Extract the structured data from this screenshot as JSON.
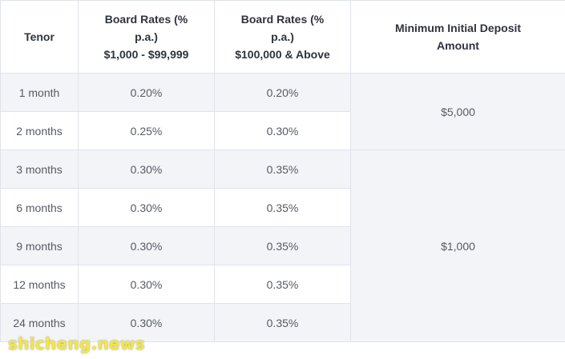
{
  "header": {
    "tenor": "Tenor",
    "board_low": [
      "Board Rates (%",
      "p.a.)",
      "$1,000 - $99,999"
    ],
    "board_high": [
      "Board Rates (%",
      "p.a.)",
      "$100,000 & Above"
    ],
    "min_deposit": [
      "Minimum Initial Deposit",
      "Amount"
    ]
  },
  "rows": [
    {
      "tenor": "1 month",
      "rate_low": "0.20%",
      "rate_high": "0.20%"
    },
    {
      "tenor": "2 months",
      "rate_low": "0.25%",
      "rate_high": "0.30%"
    },
    {
      "tenor": "3 months",
      "rate_low": "0.30%",
      "rate_high": "0.35%"
    },
    {
      "tenor": "6 months",
      "rate_low": "0.30%",
      "rate_high": "0.35%"
    },
    {
      "tenor": "9 months",
      "rate_low": "0.30%",
      "rate_high": "0.35%"
    },
    {
      "tenor": "12 months",
      "rate_low": "0.30%",
      "rate_high": "0.35%"
    },
    {
      "tenor": "24 months",
      "rate_low": "0.30%",
      "rate_high": "0.35%"
    }
  ],
  "deposits": [
    "$5,000",
    "$1,000"
  ],
  "watermark": "shicheng.news"
}
